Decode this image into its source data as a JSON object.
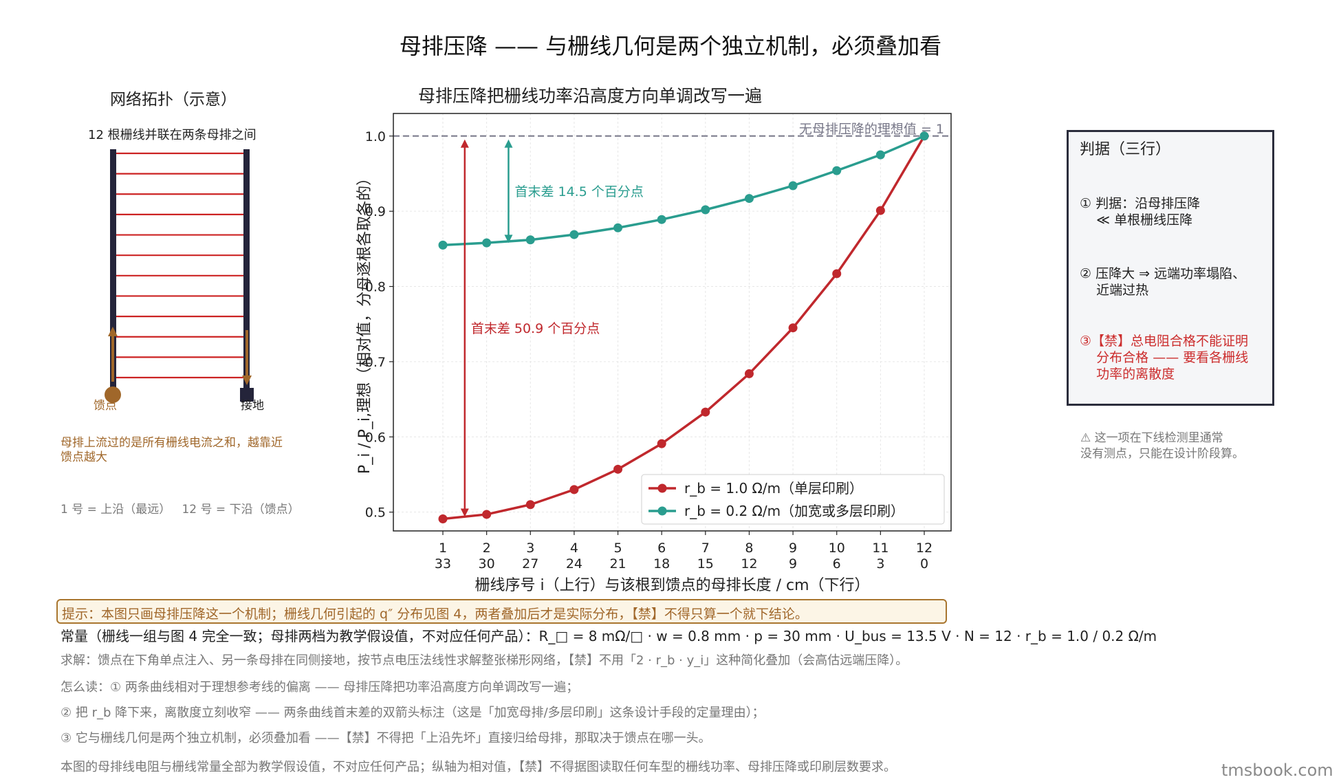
{
  "title": "母排压降 —— 与栅线几何是两个独立机制，必须叠加看",
  "topology": {
    "title": "网络拓扑（示意）",
    "subtitle": "12 根栅线并联在两条母排之间",
    "feed_label": "馈点",
    "ground_label": "接地",
    "note": "母排上流过的是所有栅线电流之和，越靠近馈点越大",
    "index_note": "1 号 = 上沿（最远）   12 号 = 下沿（馈点）",
    "grid_line_count": 12,
    "colors": {
      "busbar": "#24243a",
      "gridline": "#cc2222",
      "feed": "#a0672a",
      "arrow": "#a0672a"
    }
  },
  "chart_title": "母排压降把栅线功率沿高度方向单调改写一遍",
  "chart_data": {
    "type": "line",
    "xlabel": "栅线序号 i（上行）与该根到馈点的母排长度 / cm（下行）",
    "ylabel": "P_i / P_i,理想（相对值，分母逐根各取各的）",
    "categories": [
      1,
      2,
      3,
      4,
      5,
      6,
      7,
      8,
      9,
      10,
      11,
      12
    ],
    "category_sublabels": [
      "33",
      "30",
      "27",
      "24",
      "21",
      "18",
      "15",
      "12",
      "9",
      "6",
      "3",
      "0"
    ],
    "ylim": [
      0.475,
      1.03
    ],
    "yticks": [
      0.5,
      0.6,
      0.7,
      0.8,
      0.9,
      1.0
    ],
    "ytick_labels": [
      "0.5",
      "0.6",
      "0.7",
      "0.8",
      "0.9",
      "1.0"
    ],
    "grid": true,
    "legend_position": "lower-right",
    "reference_line": {
      "value": 1.0,
      "label": "无母排压降的理想值 = 1",
      "color": "#777788"
    },
    "series": [
      {
        "name": "r_b = 1.0 Ω/m（单层印刷）",
        "color": "#c0282d",
        "values": [
          0.491,
          0.497,
          0.51,
          0.53,
          0.557,
          0.591,
          0.633,
          0.684,
          0.745,
          0.817,
          0.901,
          1.0
        ]
      },
      {
        "name": "r_b = 0.2 Ω/m（加宽或多层印刷）",
        "color": "#2a9d8f",
        "values": [
          0.855,
          0.858,
          0.862,
          0.869,
          0.878,
          0.889,
          0.902,
          0.917,
          0.934,
          0.954,
          0.975,
          1.0
        ]
      }
    ],
    "annotations": [
      {
        "text": "首末差 50.9 个百分点",
        "series": 0,
        "color": "#c0282d",
        "x_between": [
          1,
          2
        ]
      },
      {
        "text": "首末差 14.5 个百分点",
        "series": 1,
        "color": "#2a9d8f",
        "x_between": [
          2,
          3
        ]
      }
    ]
  },
  "criteria": {
    "title": "判据（三行）",
    "item1": "① 判据：沿母排压降\n    ≪ 单根栅线压降",
    "item2": "② 压降大 ⇒ 远端功率塌陷、\n    近端过热",
    "item3": "③【禁】总电阻合格不能证明\n    分布合格 —— 要看各栅线\n    功率的离散度"
  },
  "warning_note": "⚠ 这一项在下线检测里通常\n没有测点，只能在设计阶段算。",
  "tip": "提示：本图只画母排压降这一个机制；栅线几何引起的 q″ 分布见图 4，两者叠加后才是实际分布，【禁】不得只算一个就下结论。",
  "constants": "常量（栅线一组与图 4 完全一致；母排两档为教学假设值，不对应任何产品）：R_□ = 8 mΩ/□ · w = 0.8 mm · p = 30 mm · U_bus = 13.5 V · N = 12 · r_b = 1.0 / 0.2 Ω/m",
  "solve": "求解：馈点在下角单点注入、另一条母排在同侧接地，按节点电压法线性求解整张梯形网络，【禁】不用「2 · r_b · y_i」这种简化叠加（会高估远端压降）。",
  "read1": "怎么读：① 两条曲线相对于理想参考线的偏离 —— 母排压降把功率沿高度方向单调改写一遍；",
  "read2": "② 把 r_b 降下来，离散度立刻收窄 —— 两条曲线首末差的双箭头标注（这是「加宽母排/多层印刷」这条设计手段的定量理由）；",
  "read3": "③ 它与栅线几何是两个独立机制，必须叠加看 ——【禁】不得把「上沿先坏」直接归给母排，那取决于馈点在哪一头。",
  "disclaimer": "本图的母排线电阻与栅线常量全部为教学假设值，不对应任何产品；纵轴为相对值，【禁】不得据图读取任何车型的栅线功率、母排压降或印刷层数要求。",
  "watermark": "tmsbook.com"
}
